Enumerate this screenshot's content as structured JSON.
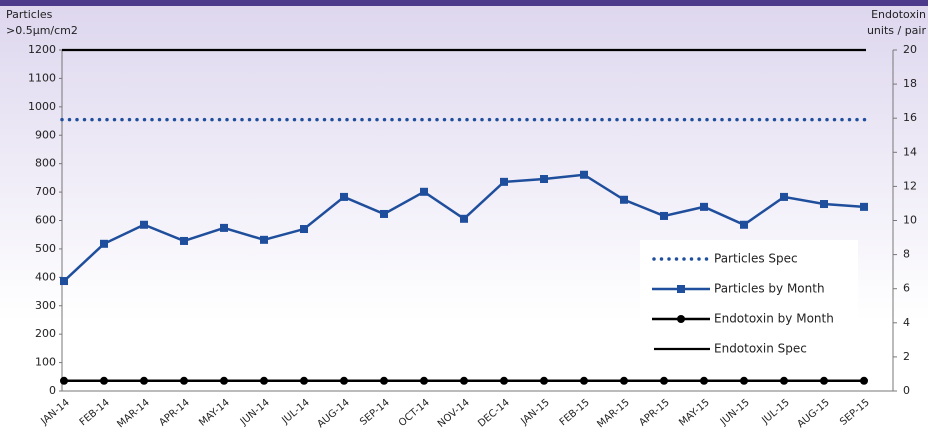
{
  "chart_data": {
    "type": "line",
    "y_label": [
      "Particles",
      ">0.5µm/cm2"
    ],
    "y2_label": [
      "Endotoxin",
      "units / pair"
    ],
    "categories": [
      "JAN-14",
      "FEB-14",
      "MAR-14",
      "APR-14",
      "MAY-14",
      "JUN-14",
      "JUL-14",
      "AUG-14",
      "SEP-14",
      "OCT-14",
      "NOV-14",
      "DEC-14",
      "JAN-15",
      "FEB-15",
      "MAR-15",
      "APR-15",
      "MAY-15",
      "JUN-15",
      "JUL-15",
      "AUG-15",
      "SEP-15"
    ],
    "series": [
      {
        "name": "Particles Spec",
        "color": "#1f4e9c",
        "style": "dotted",
        "value": 955
      },
      {
        "name": "Particles by Month",
        "color": "#1f4e9c",
        "marker": "square",
        "values": [
          387,
          518,
          585,
          528,
          574,
          532,
          570,
          683,
          623,
          701,
          606,
          736,
          746,
          761,
          673,
          616,
          648,
          585,
          683,
          658,
          648
        ]
      },
      {
        "name": "Endotoxin by Month",
        "color": "#000000",
        "marker": "circle",
        "axis": "y2",
        "values": [
          0.6,
          0.6,
          0.6,
          0.6,
          0.6,
          0.6,
          0.6,
          0.6,
          0.6,
          0.6,
          0.6,
          0.6,
          0.6,
          0.6,
          0.6,
          0.6,
          0.6,
          0.6,
          0.6,
          0.6,
          0.6
        ]
      },
      {
        "name": "Endotoxin Spec",
        "color": "#000000",
        "style": "solid",
        "axis": "y2",
        "value": 20
      }
    ],
    "ylim": [
      0,
      1200
    ],
    "yticks": [
      0,
      100,
      200,
      300,
      400,
      500,
      600,
      700,
      800,
      900,
      1000,
      1100,
      1200
    ],
    "y2lim": [
      0,
      20
    ],
    "y2ticks": [
      0,
      2,
      4,
      6,
      8,
      10,
      12,
      14,
      16,
      18,
      20
    ]
  }
}
